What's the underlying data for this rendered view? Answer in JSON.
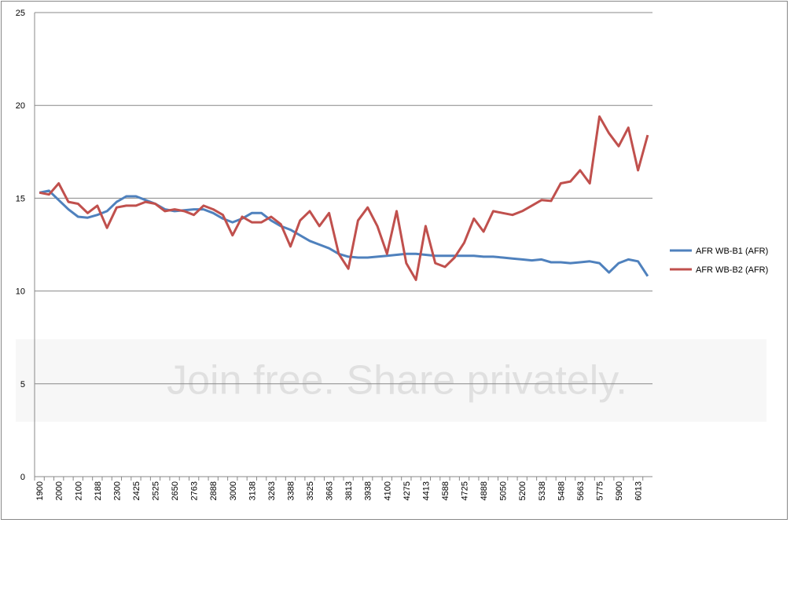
{
  "chart_data": {
    "type": "line",
    "categories": [
      "1900",
      null,
      "2000",
      null,
      "2100",
      null,
      "2188",
      null,
      "2300",
      null,
      "2425",
      null,
      "2525",
      null,
      "2650",
      null,
      "2763",
      null,
      "2888",
      null,
      "3000",
      null,
      "3138",
      null,
      "3263",
      null,
      "3388",
      null,
      "3525",
      null,
      "3663",
      null,
      "3813",
      null,
      "3938",
      null,
      "4100",
      null,
      "4275",
      null,
      "4413",
      null,
      "4588",
      null,
      "4725",
      null,
      "4888",
      null,
      "5050",
      null,
      "5200",
      null,
      "5338",
      null,
      "5488",
      null,
      "5663",
      null,
      "5775",
      null,
      "5900",
      null,
      "6013",
      null
    ],
    "series": [
      {
        "name": "AFR WB-B1 (AFR)",
        "color": "#4f81bd",
        "values": [
          15.3,
          15.4,
          14.9,
          14.4,
          14.0,
          13.95,
          14.1,
          14.3,
          14.8,
          15.1,
          15.1,
          14.9,
          14.7,
          14.4,
          14.3,
          14.35,
          14.4,
          14.4,
          14.2,
          13.9,
          13.7,
          13.9,
          14.2,
          14.2,
          13.8,
          13.5,
          13.3,
          13.0,
          12.7,
          12.5,
          12.3,
          12.0,
          11.85,
          11.8,
          11.8,
          11.85,
          11.9,
          11.95,
          12.0,
          12.0,
          11.95,
          11.9,
          11.9,
          11.9,
          11.9,
          11.9,
          11.85,
          11.85,
          11.8,
          11.75,
          11.7,
          11.65,
          11.7,
          11.55,
          11.55,
          11.5,
          11.55,
          11.6,
          11.5,
          11.0,
          11.5,
          11.7,
          11.6,
          10.8
        ]
      },
      {
        "name": "AFR WB-B2 (AFR)",
        "color": "#c0504d",
        "values": [
          15.3,
          15.2,
          15.8,
          14.8,
          14.7,
          14.2,
          14.6,
          13.4,
          14.5,
          14.6,
          14.6,
          14.8,
          14.7,
          14.3,
          14.4,
          14.3,
          14.1,
          14.6,
          14.4,
          14.1,
          13.0,
          14.0,
          13.7,
          13.7,
          14.0,
          13.6,
          12.4,
          13.8,
          14.3,
          13.5,
          14.2,
          12.0,
          11.2,
          13.8,
          14.5,
          13.5,
          12.0,
          14.3,
          11.5,
          10.6,
          13.5,
          11.5,
          11.3,
          11.8,
          12.6,
          13.9,
          13.2,
          14.3,
          14.2,
          14.1,
          14.3,
          14.6,
          14.9,
          14.85,
          15.8,
          15.9,
          16.5,
          15.8,
          19.4,
          18.5,
          17.8,
          18.8,
          16.5,
          18.4
        ]
      }
    ],
    "ylim": [
      0,
      25
    ],
    "yticks": [
      0,
      5,
      10,
      15,
      20,
      25
    ],
    "grid": true,
    "legend": "right",
    "watermark": "Join free. Share privately."
  }
}
